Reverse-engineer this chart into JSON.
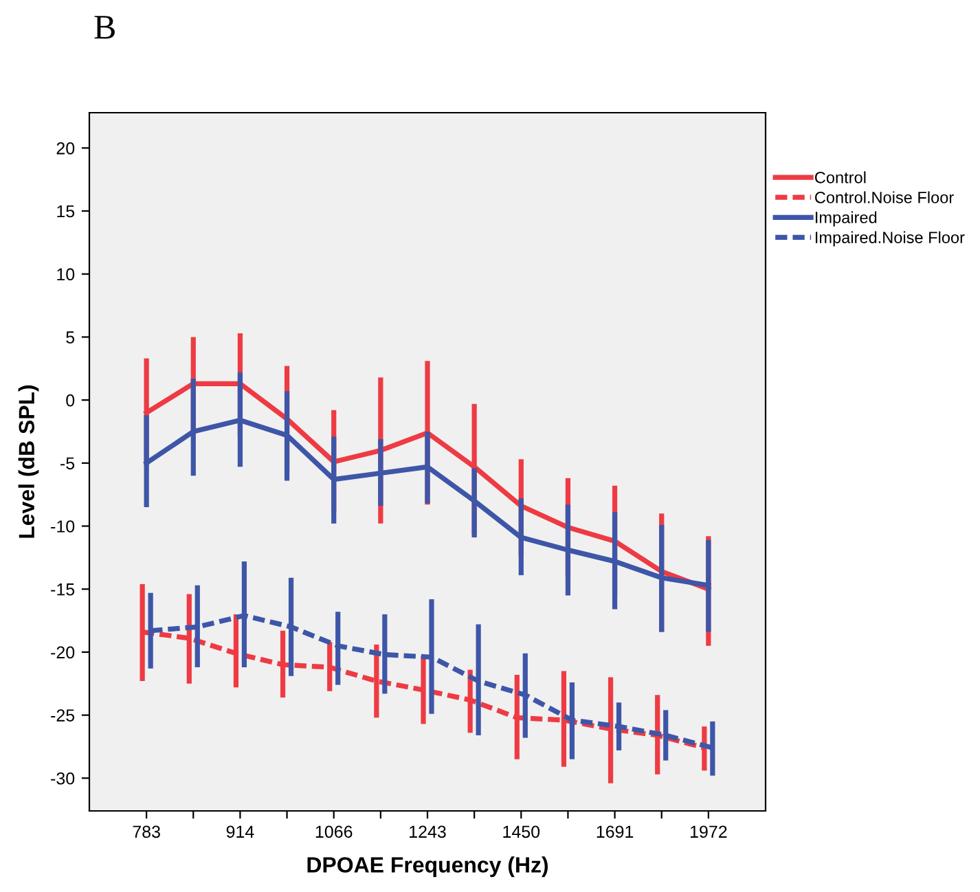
{
  "chart_data": {
    "type": "line",
    "title": "B",
    "xlabel": "DPOAE Frequency (Hz)",
    "ylabel": "Level (dB SPL)",
    "categories": [
      "783",
      null,
      "914",
      null,
      "1066",
      null,
      "1243",
      null,
      "1450",
      null,
      "1691",
      null,
      "1972"
    ],
    "ylim": [
      -32.6,
      22.8
    ],
    "yticks": [
      -30,
      -25,
      -20,
      -15,
      -10,
      -5,
      0,
      5,
      10,
      15,
      20
    ],
    "grid": false,
    "legend": "right",
    "marker": "none",
    "series": [
      {
        "name": "Control",
        "color": "#ee3b43",
        "line_style": "solid",
        "values": [
          -1.0,
          1.3,
          1.3,
          -1.5,
          -4.9,
          -4.0,
          -2.6,
          -5.3,
          -8.4,
          -10.1,
          -11.2,
          -13.6,
          -15.0
        ],
        "errors": [
          [
            -5.2,
            3.3
          ],
          [
            -2.5,
            5.0
          ],
          [
            -2.9,
            5.3
          ],
          [
            -5.7,
            2.7
          ],
          [
            -8.9,
            -0.8
          ],
          [
            -9.8,
            1.8
          ],
          [
            -8.3,
            3.1
          ],
          [
            -10.7,
            -0.3
          ],
          [
            -12.4,
            -4.7
          ],
          [
            -14.0,
            -6.2
          ],
          [
            -15.7,
            -6.8
          ],
          [
            -18.4,
            -9.0
          ],
          [
            -19.5,
            -10.8
          ]
        ]
      },
      {
        "name": "Control.Noise Floor",
        "color": "#ee3b43",
        "line_style": "dashed",
        "values": [
          -18.4,
          -18.9,
          -20.1,
          -21.0,
          -21.2,
          -22.3,
          -23.0,
          -23.8,
          -25.2,
          -25.4,
          -26.1,
          -26.6,
          -27.6
        ],
        "errors": [
          [
            -22.3,
            -14.6
          ],
          [
            -22.5,
            -15.4
          ],
          [
            -22.8,
            -17.0
          ],
          [
            -23.6,
            -18.3
          ],
          [
            -23.1,
            -19.2
          ],
          [
            -25.2,
            -19.4
          ],
          [
            -25.7,
            -20.3
          ],
          [
            -26.4,
            -21.4
          ],
          [
            -28.5,
            -21.8
          ],
          [
            -29.1,
            -21.5
          ],
          [
            -30.4,
            -22.0
          ],
          [
            -29.7,
            -23.4
          ],
          [
            -29.4,
            -25.9
          ]
        ]
      },
      {
        "name": "Impaired",
        "color": "#3e56a8",
        "line_style": "solid",
        "values": [
          -5.0,
          -2.5,
          -1.6,
          -2.8,
          -6.3,
          -5.8,
          -5.3,
          -8.0,
          -10.9,
          -11.9,
          -12.8,
          -14.1,
          -14.7
        ],
        "errors": [
          [
            -8.5,
            -1.2
          ],
          [
            -6.0,
            1.7
          ],
          [
            -5.3,
            2.2
          ],
          [
            -6.4,
            0.7
          ],
          [
            -9.8,
            -2.9
          ],
          [
            -8.4,
            -3.1
          ],
          [
            -8.2,
            -2.5
          ],
          [
            -10.9,
            -5.4
          ],
          [
            -13.9,
            -7.8
          ],
          [
            -15.5,
            -8.3
          ],
          [
            -16.6,
            -8.9
          ],
          [
            -18.4,
            -9.9
          ],
          [
            -18.4,
            -11.1
          ]
        ]
      },
      {
        "name": "Impaired.Noise Floor",
        "color": "#3e56a8",
        "line_style": "dashed",
        "values": [
          -18.3,
          -18.0,
          -17.1,
          -18.0,
          -19.5,
          -20.2,
          -20.4,
          -22.3,
          -23.4,
          -25.4,
          -25.9,
          -26.6,
          -27.6
        ],
        "errors": [
          [
            -21.3,
            -15.3
          ],
          [
            -21.2,
            -14.7
          ],
          [
            -21.2,
            -12.8
          ],
          [
            -21.9,
            -14.1
          ],
          [
            -22.6,
            -16.8
          ],
          [
            -23.3,
            -17.0
          ],
          [
            -24.9,
            -15.8
          ],
          [
            -26.6,
            -17.8
          ],
          [
            -26.8,
            -20.1
          ],
          [
            -28.5,
            -22.4
          ],
          [
            -27.8,
            -24.0
          ],
          [
            -28.6,
            -24.6
          ],
          [
            -29.8,
            -25.5
          ]
        ]
      }
    ]
  }
}
